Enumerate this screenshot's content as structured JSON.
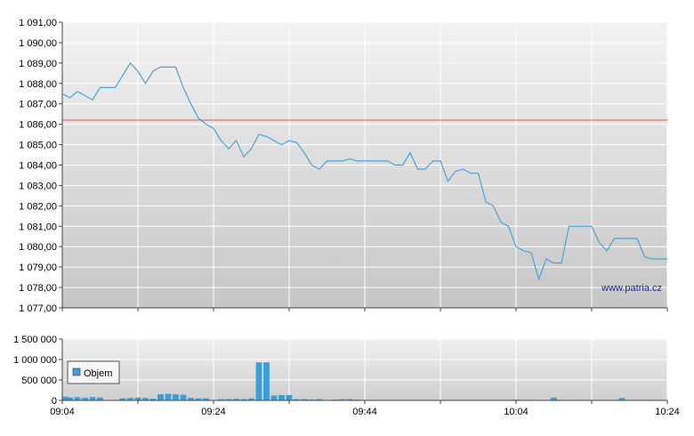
{
  "watermark": "www.patria.cz",
  "colors": {
    "price_line": "#4aa3d8",
    "reference_line": "#e05050",
    "volume_bar": "#3a9fd8",
    "plot_top": "#f3f3f3",
    "plot_bottom": "#c7c7c7"
  },
  "chart_data": [
    {
      "type": "line",
      "title": "",
      "ylim": [
        1077.0,
        1091.0
      ],
      "y_ticks": [
        "1 077,00",
        "1 078,00",
        "1 079,00",
        "1 080,00",
        "1 081,00",
        "1 082,00",
        "1 083,00",
        "1 084,00",
        "1 085,00",
        "1 086,00",
        "1 087,00",
        "1 088,00",
        "1 089,00",
        "1 090,00",
        "1 091,00"
      ],
      "reference_value": 1086.2,
      "x_time_range": [
        "09:04",
        "10:24"
      ],
      "grid": true,
      "series": [
        {
          "x": [
            "09:04",
            "09:05",
            "09:06",
            "09:07",
            "09:08",
            "09:09",
            "09:10",
            "09:11",
            "09:12",
            "09:13",
            "09:14",
            "09:15",
            "09:16",
            "09:17",
            "09:18",
            "09:19",
            "09:20",
            "09:21",
            "09:22",
            "09:23",
            "09:24",
            "09:25",
            "09:26",
            "09:27",
            "09:28",
            "09:29",
            "09:30",
            "09:31",
            "09:32",
            "09:33",
            "09:34",
            "09:35",
            "09:36",
            "09:37",
            "09:38",
            "09:39",
            "09:40",
            "09:41",
            "09:42",
            "09:43",
            "09:44",
            "09:45",
            "09:46",
            "09:47",
            "09:48",
            "09:49",
            "09:50",
            "09:51",
            "09:52",
            "09:53",
            "09:54",
            "09:55",
            "09:56",
            "09:57",
            "09:58",
            "09:59",
            "10:00",
            "10:01",
            "10:02",
            "10:03",
            "10:04",
            "10:05",
            "10:06",
            "10:07",
            "10:08",
            "10:09",
            "10:10",
            "10:11",
            "10:12",
            "10:13",
            "10:14",
            "10:15",
            "10:16",
            "10:17",
            "10:18",
            "10:19",
            "10:20",
            "10:21",
            "10:22",
            "10:23",
            "10:24"
          ],
          "values": [
            1087.5,
            1087.3,
            1087.6,
            1087.4,
            1087.2,
            1087.8,
            1087.8,
            1087.8,
            1088.4,
            1089.0,
            1088.6,
            1088.0,
            1088.6,
            1088.8,
            1088.8,
            1088.8,
            1087.8,
            1087.0,
            1086.3,
            1086.0,
            1085.8,
            1085.2,
            1084.8,
            1085.2,
            1084.4,
            1084.8,
            1085.5,
            1085.4,
            1085.2,
            1085.0,
            1085.2,
            1085.1,
            1084.6,
            1084.0,
            1083.8,
            1084.2,
            1084.2,
            1084.2,
            1084.3,
            1084.2,
            1084.2,
            1084.2,
            1084.2,
            1084.2,
            1084.0,
            1084.0,
            1084.6,
            1083.8,
            1083.8,
            1084.2,
            1084.2,
            1083.2,
            1083.7,
            1083.8,
            1083.6,
            1083.6,
            1082.2,
            1082.0,
            1081.2,
            1081.0,
            1080.0,
            1079.8,
            1079.7,
            1078.4,
            1079.4,
            1079.2,
            1079.2,
            1081.0,
            1081.0,
            1081.0,
            1081.0,
            1080.2,
            1079.8,
            1080.4,
            1080.4,
            1080.4,
            1080.4,
            1079.5,
            1079.4,
            1079.4,
            1079.4
          ]
        }
      ]
    },
    {
      "type": "bar",
      "ylim": [
        0,
        1500000
      ],
      "y_ticks": [
        "0",
        "500 000",
        "1 000 000",
        "1 500 000"
      ],
      "x_ticks": [
        "09:04",
        "09:24",
        "09:44",
        "10:04",
        "10:24"
      ],
      "legend": "Objem",
      "legend_position": "left",
      "grid": true,
      "series": [
        {
          "name": "Objem",
          "x": [
            "09:04",
            "09:05",
            "09:06",
            "09:07",
            "09:08",
            "09:09",
            "09:12",
            "09:13",
            "09:14",
            "09:15",
            "09:16",
            "09:17",
            "09:18",
            "09:19",
            "09:20",
            "09:21",
            "09:22",
            "09:23",
            "09:25",
            "09:26",
            "09:27",
            "09:28",
            "09:29",
            "09:30",
            "09:31",
            "09:32",
            "09:33",
            "09:34",
            "09:35",
            "09:36",
            "09:37",
            "09:38",
            "09:40",
            "09:41",
            "09:42",
            "09:43",
            "10:04",
            "10:09",
            "10:18"
          ],
          "values": [
            90000,
            70000,
            80000,
            60000,
            80000,
            70000,
            50000,
            60000,
            70000,
            60000,
            40000,
            150000,
            160000,
            150000,
            140000,
            60000,
            50000,
            50000,
            30000,
            30000,
            40000,
            30000,
            50000,
            930000,
            930000,
            120000,
            130000,
            130000,
            30000,
            30000,
            20000,
            30000,
            20000,
            30000,
            30000,
            20000,
            20000,
            70000,
            60000
          ]
        }
      ]
    }
  ]
}
